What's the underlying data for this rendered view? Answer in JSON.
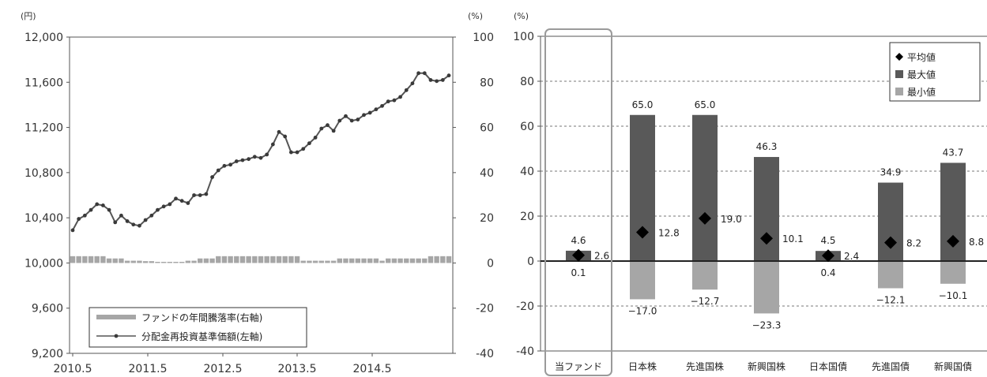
{
  "chart_data": [
    {
      "type": "line",
      "left_unit": "(円)",
      "right_unit": "(%)",
      "x_tick_labels": [
        "2010.5",
        "2011.5",
        "2012.5",
        "2013.5",
        "2014.5"
      ],
      "left_ylim": [
        9200,
        12000
      ],
      "left_ticks": [
        "9,200",
        "9,600",
        "10,000",
        "10,400",
        "10,800",
        "11,200",
        "11,600",
        "12,000"
      ],
      "right_ylim": [
        -40,
        100
      ],
      "right_ticks": [
        "-40",
        "-20",
        "0",
        "20",
        "40",
        "60",
        "80",
        "100"
      ],
      "grid": false,
      "legend": {
        "placement": "bottom-left",
        "bar_label": "ファンドの年間騰落率(右軸)",
        "line_label": "分配金再投資基準価額(左軸)"
      },
      "line_series": {
        "name": "分配金再投資基準価額(左軸)",
        "axis": "left",
        "x": [
          "2010.5",
          "2010.6",
          "2010.7",
          "2010.8",
          "2010.9",
          "2010.10",
          "2010.11",
          "2010.12",
          "2011.1",
          "2011.2",
          "2011.3",
          "2011.4",
          "2011.5",
          "2011.6",
          "2011.7",
          "2011.8",
          "2011.9",
          "2011.10",
          "2011.11",
          "2011.12",
          "2012.1",
          "2012.2",
          "2012.3",
          "2012.4",
          "2012.5",
          "2012.6",
          "2012.7",
          "2012.8",
          "2012.9",
          "2012.10",
          "2012.11",
          "2012.12",
          "2013.1",
          "2013.2",
          "2013.3",
          "2013.4",
          "2013.5",
          "2013.6",
          "2013.7",
          "2013.8",
          "2013.9",
          "2013.10",
          "2013.11",
          "2013.12",
          "2014.1",
          "2014.2",
          "2014.3",
          "2014.4",
          "2014.5",
          "2014.6",
          "2014.7",
          "2014.8",
          "2014.9",
          "2014.10",
          "2014.11",
          "2014.12",
          "2015.1",
          "2015.2",
          "2015.3",
          "2015.4",
          "2015.5",
          "2015.6",
          "2015.7"
        ],
        "values": [
          10290,
          10390,
          10420,
          10470,
          10520,
          10510,
          10470,
          10360,
          10420,
          10370,
          10340,
          10330,
          10380,
          10420,
          10470,
          10500,
          10520,
          10570,
          10550,
          10530,
          10600,
          10600,
          10610,
          10760,
          10820,
          10860,
          10870,
          10900,
          10910,
          10920,
          10940,
          10930,
          10960,
          11050,
          11160,
          11120,
          10980,
          10980,
          11010,
          11060,
          11110,
          11190,
          11220,
          11170,
          11260,
          11300,
          11260,
          11270,
          11310,
          11330,
          11360,
          11390,
          11430,
          11440,
          11470,
          11530,
          11590,
          11680,
          11680,
          11620,
          11610,
          11620,
          11660
        ]
      },
      "bar_series": {
        "name": "ファンドの年間騰落率(右軸)",
        "axis": "right",
        "values": [
          3,
          3,
          3,
          3,
          3,
          3,
          2,
          2,
          2,
          1,
          1,
          1,
          0.8,
          0.8,
          0.5,
          0.5,
          0.5,
          0.5,
          0.5,
          1,
          1,
          2,
          2,
          2,
          3,
          3,
          3,
          3,
          3,
          3,
          3,
          3,
          3,
          3,
          3,
          3,
          3,
          3,
          1,
          1,
          1,
          1,
          1,
          1,
          2,
          2,
          2,
          2,
          2,
          2,
          2,
          1,
          2,
          2,
          2,
          2,
          2,
          2,
          2,
          3,
          3,
          3,
          3
        ]
      }
    },
    {
      "type": "bar",
      "unit_label": "(%)",
      "ylim": [
        -40,
        100
      ],
      "ticks": [
        "-40",
        "-20",
        "0",
        "20",
        "40",
        "60",
        "80",
        "100"
      ],
      "grid": "dashed-horizontal",
      "categories": [
        "当ファンド",
        "日本株",
        "先進国株",
        "新興国株",
        "日本国債",
        "先進国債",
        "新興国債"
      ],
      "highlighted_category": "当ファンド",
      "legend": {
        "placement": "top-right",
        "entries": [
          "平均値",
          "最大値",
          "最小値"
        ]
      },
      "colors": {
        "max": "#595959",
        "min": "#a6a6a6",
        "avg": "#000000"
      },
      "series": [
        {
          "name": "最大値",
          "values": [
            4.6,
            65.0,
            65.0,
            46.3,
            4.5,
            34.9,
            43.7
          ],
          "labels": [
            "4.6",
            "65.0",
            "65.0",
            "46.3",
            "4.5",
            "34.9",
            "43.7"
          ]
        },
        {
          "name": "最小値",
          "values": [
            0.1,
            -17.0,
            -12.7,
            -23.3,
            0.4,
            -12.1,
            -10.1
          ],
          "labels": [
            "0.1",
            "−17.0",
            "−12.7",
            "−23.3",
            "0.4",
            "−12.1",
            "−10.1"
          ]
        },
        {
          "name": "平均値",
          "values": [
            2.6,
            12.8,
            19.0,
            10.1,
            2.4,
            8.2,
            8.8
          ],
          "labels": [
            "2.6",
            "12.8",
            "19.0",
            "10.1",
            "2.4",
            "8.2",
            "8.8"
          ]
        }
      ]
    }
  ]
}
